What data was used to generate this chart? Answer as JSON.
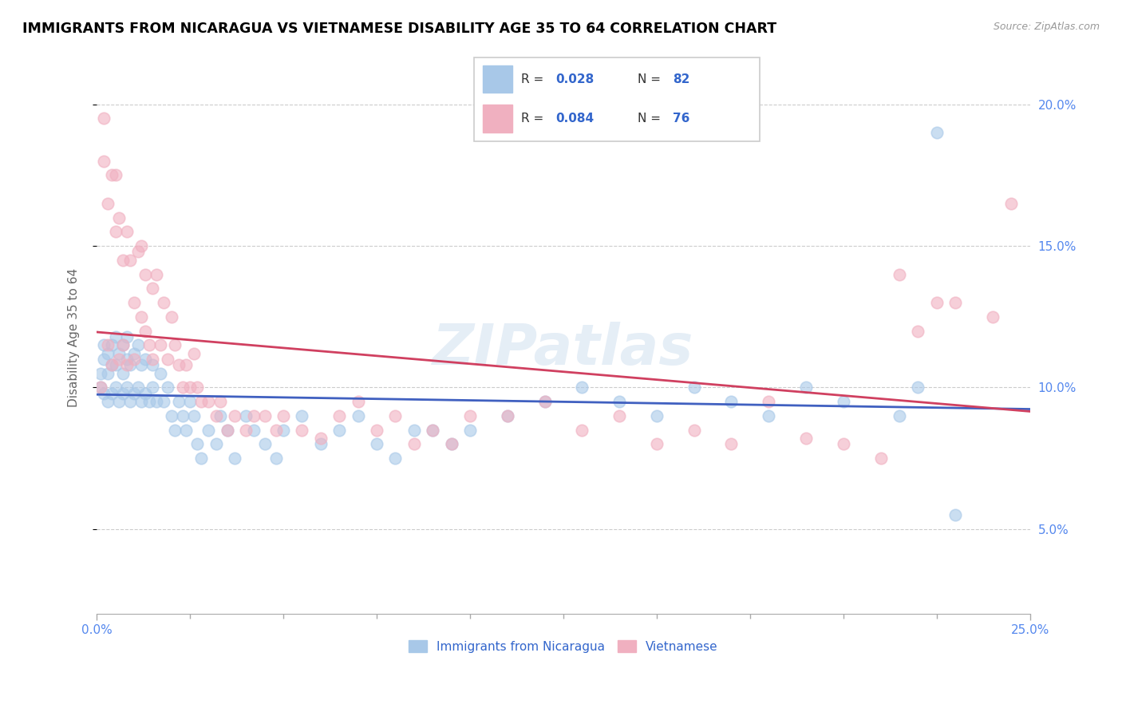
{
  "title": "IMMIGRANTS FROM NICARAGUA VS VIETNAMESE DISABILITY AGE 35 TO 64 CORRELATION CHART",
  "source": "Source: ZipAtlas.com",
  "ylabel": "Disability Age 35 to 64",
  "y_ticks": [
    0.05,
    0.1,
    0.15,
    0.2
  ],
  "y_tick_labels": [
    "5.0%",
    "10.0%",
    "15.0%",
    "20.0%"
  ],
  "x_min": 0.0,
  "x_max": 0.25,
  "y_min": 0.02,
  "y_max": 0.215,
  "color_blue": "#a8c8e8",
  "color_pink": "#f0b0c0",
  "line_color_blue": "#4060c0",
  "line_color_pink": "#d04060",
  "label1": "Immigrants from Nicaragua",
  "label2": "Vietnamese",
  "nicaragua_x": [
    0.001,
    0.001,
    0.002,
    0.002,
    0.002,
    0.003,
    0.003,
    0.003,
    0.004,
    0.004,
    0.004,
    0.005,
    0.005,
    0.005,
    0.006,
    0.006,
    0.007,
    0.007,
    0.007,
    0.008,
    0.008,
    0.008,
    0.009,
    0.009,
    0.01,
    0.01,
    0.011,
    0.011,
    0.012,
    0.012,
    0.013,
    0.013,
    0.014,
    0.015,
    0.015,
    0.016,
    0.017,
    0.018,
    0.019,
    0.02,
    0.021,
    0.022,
    0.023,
    0.024,
    0.025,
    0.026,
    0.027,
    0.028,
    0.03,
    0.032,
    0.033,
    0.035,
    0.037,
    0.04,
    0.042,
    0.045,
    0.048,
    0.05,
    0.055,
    0.06,
    0.065,
    0.07,
    0.075,
    0.08,
    0.085,
    0.09,
    0.095,
    0.1,
    0.11,
    0.12,
    0.13,
    0.14,
    0.15,
    0.16,
    0.17,
    0.18,
    0.19,
    0.2,
    0.215,
    0.22,
    0.225,
    0.23
  ],
  "nicaragua_y": [
    0.1,
    0.105,
    0.098,
    0.11,
    0.115,
    0.095,
    0.105,
    0.112,
    0.098,
    0.108,
    0.115,
    0.1,
    0.108,
    0.118,
    0.095,
    0.112,
    0.098,
    0.105,
    0.115,
    0.1,
    0.11,
    0.118,
    0.095,
    0.108,
    0.098,
    0.112,
    0.1,
    0.115,
    0.095,
    0.108,
    0.098,
    0.11,
    0.095,
    0.1,
    0.108,
    0.095,
    0.105,
    0.095,
    0.1,
    0.09,
    0.085,
    0.095,
    0.09,
    0.085,
    0.095,
    0.09,
    0.08,
    0.075,
    0.085,
    0.08,
    0.09,
    0.085,
    0.075,
    0.09,
    0.085,
    0.08,
    0.075,
    0.085,
    0.09,
    0.08,
    0.085,
    0.09,
    0.08,
    0.075,
    0.085,
    0.085,
    0.08,
    0.085,
    0.09,
    0.095,
    0.1,
    0.095,
    0.09,
    0.1,
    0.095,
    0.09,
    0.1,
    0.095,
    0.09,
    0.1,
    0.19,
    0.055
  ],
  "vietnamese_x": [
    0.001,
    0.002,
    0.002,
    0.003,
    0.003,
    0.004,
    0.004,
    0.005,
    0.005,
    0.006,
    0.006,
    0.007,
    0.007,
    0.008,
    0.008,
    0.009,
    0.01,
    0.01,
    0.011,
    0.012,
    0.012,
    0.013,
    0.013,
    0.014,
    0.015,
    0.015,
    0.016,
    0.017,
    0.018,
    0.019,
    0.02,
    0.021,
    0.022,
    0.023,
    0.024,
    0.025,
    0.026,
    0.027,
    0.028,
    0.03,
    0.032,
    0.033,
    0.035,
    0.037,
    0.04,
    0.042,
    0.045,
    0.048,
    0.05,
    0.055,
    0.06,
    0.065,
    0.07,
    0.075,
    0.08,
    0.085,
    0.09,
    0.095,
    0.1,
    0.11,
    0.12,
    0.13,
    0.14,
    0.15,
    0.16,
    0.17,
    0.18,
    0.19,
    0.2,
    0.21,
    0.215,
    0.22,
    0.225,
    0.23,
    0.24,
    0.245
  ],
  "vietnamese_y": [
    0.1,
    0.18,
    0.195,
    0.115,
    0.165,
    0.175,
    0.108,
    0.155,
    0.175,
    0.16,
    0.11,
    0.145,
    0.115,
    0.155,
    0.108,
    0.145,
    0.11,
    0.13,
    0.148,
    0.125,
    0.15,
    0.12,
    0.14,
    0.115,
    0.135,
    0.11,
    0.14,
    0.115,
    0.13,
    0.11,
    0.125,
    0.115,
    0.108,
    0.1,
    0.108,
    0.1,
    0.112,
    0.1,
    0.095,
    0.095,
    0.09,
    0.095,
    0.085,
    0.09,
    0.085,
    0.09,
    0.09,
    0.085,
    0.09,
    0.085,
    0.082,
    0.09,
    0.095,
    0.085,
    0.09,
    0.08,
    0.085,
    0.08,
    0.09,
    0.09,
    0.095,
    0.085,
    0.09,
    0.08,
    0.085,
    0.08,
    0.095,
    0.082,
    0.08,
    0.075,
    0.14,
    0.12,
    0.13,
    0.13,
    0.125,
    0.165
  ]
}
